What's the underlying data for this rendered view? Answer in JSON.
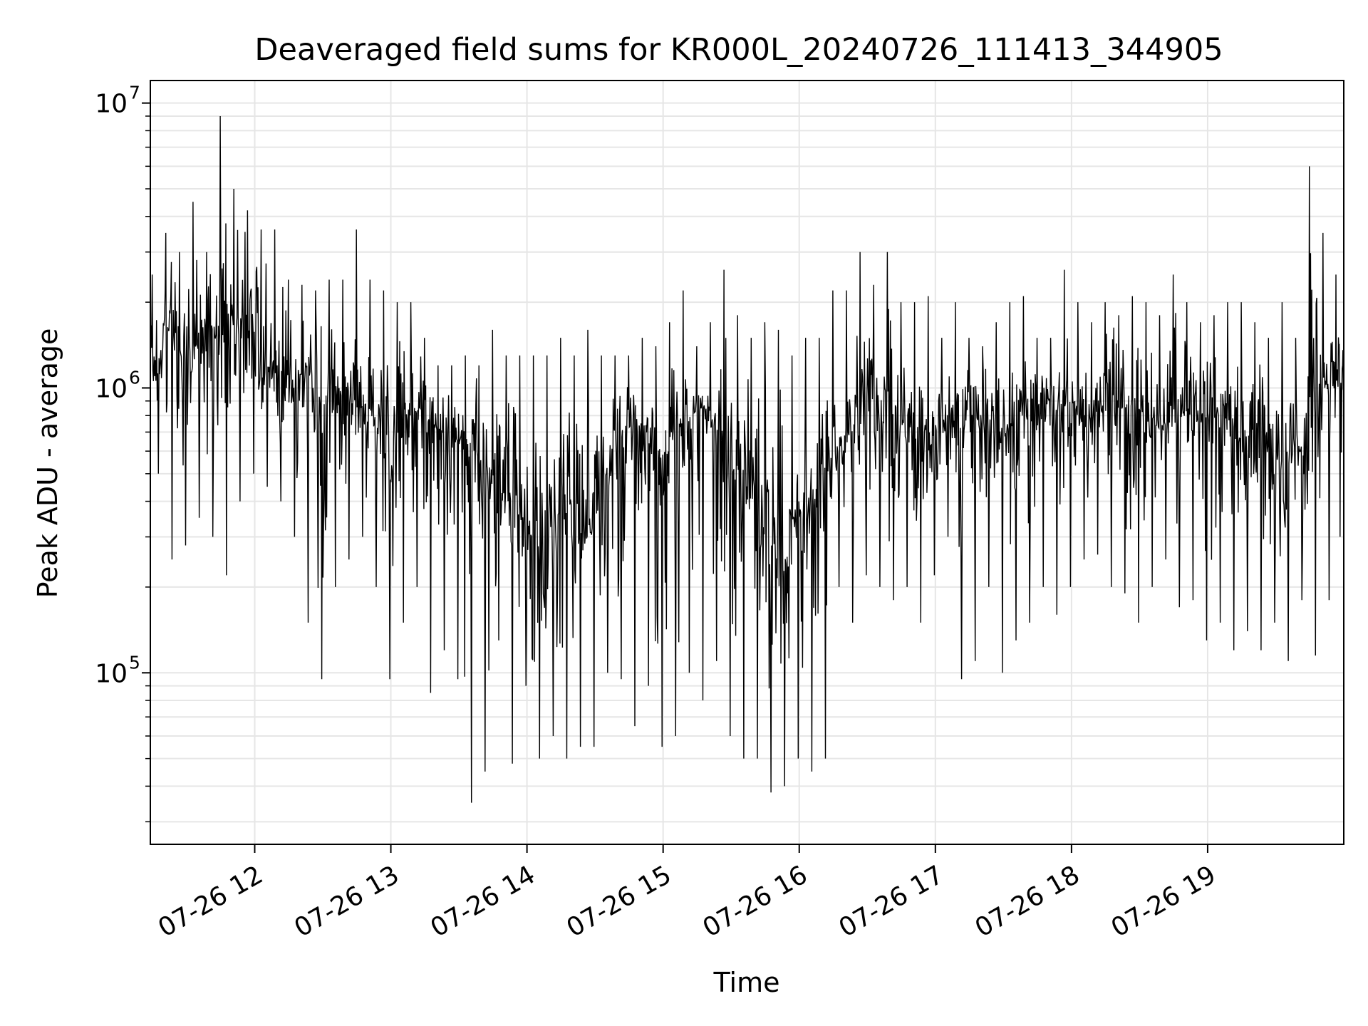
{
  "chart_data": {
    "type": "line",
    "title": "Deaveraged field sums for KR000L_20240726_111413_344905",
    "xlabel": "Time",
    "ylabel": "Peak ADU - average",
    "yscale": "log",
    "grid": true,
    "legend": "none",
    "colors": {
      "line": "#000000",
      "grid": "#e6e6e6",
      "axes": "#000000",
      "background": "#ffffff"
    },
    "xlim": [
      "2024-07-26 11:14",
      "2024-07-26 20:00"
    ],
    "ylim": [
      25000,
      12000000
    ],
    "x_ticks": [
      {
        "value": "2024-07-26 12:00",
        "label": "07-26 12"
      },
      {
        "value": "2024-07-26 13:00",
        "label": "07-26 13"
      },
      {
        "value": "2024-07-26 14:00",
        "label": "07-26 14"
      },
      {
        "value": "2024-07-26 15:00",
        "label": "07-26 15"
      },
      {
        "value": "2024-07-26 16:00",
        "label": "07-26 16"
      },
      {
        "value": "2024-07-26 17:00",
        "label": "07-26 17"
      },
      {
        "value": "2024-07-26 18:00",
        "label": "07-26 18"
      },
      {
        "value": "2024-07-26 19:00",
        "label": "07-26 19"
      }
    ],
    "y_ticks": [
      {
        "value": 100000,
        "base": "10",
        "exp": "5"
      },
      {
        "value": 1000000,
        "base": "10",
        "exp": "6"
      },
      {
        "value": 10000000,
        "base": "10",
        "exp": "7"
      }
    ],
    "series": [
      {
        "x": [
          "2024-07-26 11:14",
          "2024-07-26 11:20",
          "2024-07-26 11:26",
          "2024-07-26 11:32",
          "2024-07-26 11:38",
          "2024-07-26 11:44",
          "2024-07-26 11:50",
          "2024-07-26 11:56",
          "2024-07-26 12:02",
          "2024-07-26 12:08",
          "2024-07-26 12:14",
          "2024-07-26 12:20",
          "2024-07-26 12:26",
          "2024-07-26 12:32",
          "2024-07-26 12:38",
          "2024-07-26 12:44",
          "2024-07-26 12:50",
          "2024-07-26 12:56",
          "2024-07-26 13:02",
          "2024-07-26 13:08",
          "2024-07-26 13:14",
          "2024-07-26 13:20",
          "2024-07-26 13:26",
          "2024-07-26 13:32",
          "2024-07-26 13:38",
          "2024-07-26 13:44",
          "2024-07-26 13:50",
          "2024-07-26 13:56",
          "2024-07-26 14:02",
          "2024-07-26 14:08",
          "2024-07-26 14:14",
          "2024-07-26 14:20",
          "2024-07-26 14:26",
          "2024-07-26 14:32",
          "2024-07-26 14:38",
          "2024-07-26 14:44",
          "2024-07-26 14:50",
          "2024-07-26 14:56",
          "2024-07-26 15:02",
          "2024-07-26 15:08",
          "2024-07-26 15:14",
          "2024-07-26 15:20",
          "2024-07-26 15:26",
          "2024-07-26 15:32",
          "2024-07-26 15:38",
          "2024-07-26 15:44",
          "2024-07-26 15:50",
          "2024-07-26 15:56",
          "2024-07-26 16:02",
          "2024-07-26 16:08",
          "2024-07-26 16:14",
          "2024-07-26 16:20",
          "2024-07-26 16:26",
          "2024-07-26 16:32",
          "2024-07-26 16:38",
          "2024-07-26 16:44",
          "2024-07-26 16:50",
          "2024-07-26 16:56",
          "2024-07-26 17:02",
          "2024-07-26 17:08",
          "2024-07-26 17:14",
          "2024-07-26 17:20",
          "2024-07-26 17:26",
          "2024-07-26 17:32",
          "2024-07-26 17:38",
          "2024-07-26 17:44",
          "2024-07-26 17:50",
          "2024-07-26 17:56",
          "2024-07-26 18:02",
          "2024-07-26 18:08",
          "2024-07-26 18:14",
          "2024-07-26 18:20",
          "2024-07-26 18:26",
          "2024-07-26 18:32",
          "2024-07-26 18:38",
          "2024-07-26 18:44",
          "2024-07-26 18:50",
          "2024-07-26 18:56",
          "2024-07-26 19:02",
          "2024-07-26 19:08",
          "2024-07-26 19:14",
          "2024-07-26 19:20",
          "2024-07-26 19:26",
          "2024-07-26 19:32",
          "2024-07-26 19:38",
          "2024-07-26 19:44",
          "2024-07-26 19:50",
          "2024-07-26 19:56"
        ],
        "y": [
          1200000,
          1500000,
          1300000,
          1400000,
          1600000,
          1800000,
          1700000,
          1500000,
          1100000,
          1200000,
          1000000,
          1100000,
          900000,
          1000000,
          950000,
          850000,
          800000,
          750000,
          700000,
          800000,
          750000,
          700000,
          650000,
          600000,
          500000,
          450000,
          400000,
          350000,
          300000,
          350000,
          400000,
          300000,
          350000,
          500000,
          600000,
          700000,
          650000,
          600000,
          700000,
          750000,
          800000,
          700000,
          600000,
          500000,
          400000,
          350000,
          300000,
          350000,
          400000,
          500000,
          600000,
          700000,
          800000,
          900000,
          850000,
          750000,
          700000,
          650000,
          700000,
          750000,
          800000,
          750000,
          700000,
          750000,
          800000,
          850000,
          900000,
          800000,
          750000,
          850000,
          900000,
          850000,
          800000,
          750000,
          800000,
          850000,
          800000,
          750000,
          800000,
          750000,
          700000,
          650000,
          600000,
          550000,
          600000,
          800000,
          1000000,
          1100000
        ],
        "low": [
          500000,
          250000,
          280000,
          350000,
          300000,
          220000,
          400000,
          500000,
          450000,
          400000,
          300000,
          150000,
          95000,
          200000,
          250000,
          300000,
          200000,
          95000,
          150000,
          200000,
          85000,
          120000,
          95000,
          35000,
          45000,
          130000,
          48000,
          90000,
          50000,
          60000,
          50000,
          55000,
          55000,
          100000,
          95000,
          65000,
          90000,
          55000,
          60000,
          100000,
          80000,
          110000,
          60000,
          50000,
          50000,
          38000,
          40000,
          50000,
          45000,
          50000,
          200000,
          150000,
          220000,
          200000,
          180000,
          200000,
          150000,
          220000,
          300000,
          95000,
          110000,
          200000,
          100000,
          130000,
          150000,
          200000,
          160000,
          200000,
          250000,
          260000,
          200000,
          190000,
          150000,
          200000,
          250000,
          170000,
          180000,
          130000,
          150000,
          120000,
          140000,
          120000,
          150000,
          110000,
          180000,
          115000,
          180000,
          300000
        ],
        "high": [
          2500000,
          3500000,
          3000000,
          4500000,
          3000000,
          9000000,
          5000000,
          4200000,
          3600000,
          3600000,
          2400000,
          2300000,
          2200000,
          2400000,
          2400000,
          3600000,
          2400000,
          2200000,
          2000000,
          2000000,
          1500000,
          1200000,
          1200000,
          1300000,
          1200000,
          1600000,
          1300000,
          1300000,
          1300000,
          1300000,
          1500000,
          1300000,
          1600000,
          1300000,
          1300000,
          1300000,
          1500000,
          1400000,
          1700000,
          2200000,
          1400000,
          1700000,
          2600000,
          1800000,
          1500000,
          1700000,
          1600000,
          1300000,
          1500000,
          1500000,
          2200000,
          2200000,
          3000000,
          2300000,
          3000000,
          2000000,
          2000000,
          2100000,
          1500000,
          2000000,
          1500000,
          1400000,
          1700000,
          2000000,
          2100000,
          1500000,
          1500000,
          2600000,
          2000000,
          1700000,
          2000000,
          1800000,
          2100000,
          2000000,
          1800000,
          2500000,
          2000000,
          1700000,
          1800000,
          2000000,
          2000000,
          1700000,
          1500000,
          2000000,
          1500000,
          6000000,
          3500000,
          2500000
        ]
      }
    ]
  }
}
